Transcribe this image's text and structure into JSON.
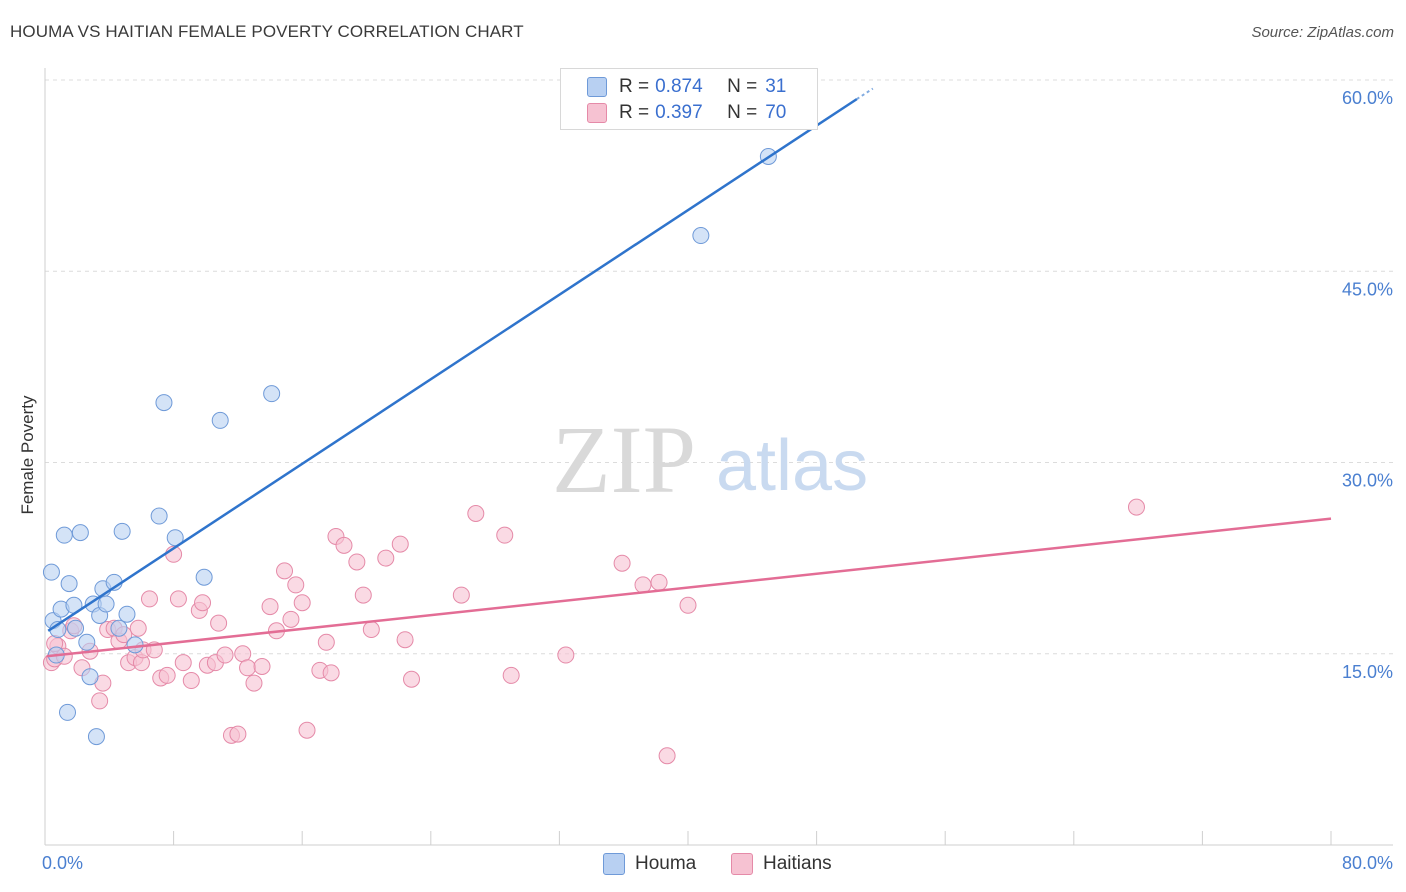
{
  "header": {
    "title": "HOUMA VS HAITIAN FEMALE POVERTY CORRELATION CHART",
    "source": "Source: ZipAtlas.com"
  },
  "watermark": {
    "zip": "ZIP",
    "atlas": "atlas"
  },
  "legend": {
    "houma": {
      "r_label": "R = ",
      "r_value": "0.874",
      "n_label": "N = ",
      "n_value": "31"
    },
    "haitians": {
      "r_label": "R = ",
      "r_value": "0.397",
      "n_label": "N = ",
      "n_value": "70"
    }
  },
  "colors": {
    "houma_fill": "#b8d0f2",
    "houma_stroke": "#6f9ad8",
    "houma_line": "#2f74cc",
    "haitians_fill": "#f6c2d2",
    "haitians_stroke": "#e58aa8",
    "haitians_line": "#e36d95",
    "tick_text": "#4a7fd0",
    "grid": "#dcdcdc"
  },
  "chart_data": {
    "type": "scatter",
    "title": "HOUMA VS HAITIAN FEMALE POVERTY CORRELATION CHART",
    "ylabel": "Female Poverty",
    "xlabel": "",
    "xlim": [
      0,
      80
    ],
    "ylim": [
      0,
      60
    ],
    "x_tick_labels": [
      "0.0%",
      "80.0%"
    ],
    "y_ticks": [
      15,
      30,
      45,
      60
    ],
    "y_tick_labels": [
      "15.0%",
      "30.0%",
      "45.0%",
      "60.0%"
    ],
    "grid": true,
    "legend_position": "top-center",
    "series": [
      {
        "name": "Houma",
        "r": 0.874,
        "n": 31,
        "trend": {
          "x": [
            0.2,
            50.5
          ],
          "y": [
            16.8,
            58.5
          ]
        },
        "points": [
          [
            0.4,
            21.4
          ],
          [
            0.5,
            17.6
          ],
          [
            0.7,
            14.9
          ],
          [
            0.8,
            16.9
          ],
          [
            1.0,
            18.5
          ],
          [
            1.2,
            24.3
          ],
          [
            1.4,
            10.4
          ],
          [
            1.5,
            20.5
          ],
          [
            1.8,
            18.8
          ],
          [
            1.9,
            17.0
          ],
          [
            2.2,
            24.5
          ],
          [
            2.6,
            15.9
          ],
          [
            2.8,
            13.2
          ],
          [
            3.0,
            18.9
          ],
          [
            3.2,
            8.5
          ],
          [
            3.4,
            18.0
          ],
          [
            3.6,
            20.1
          ],
          [
            3.8,
            18.9
          ],
          [
            4.3,
            20.6
          ],
          [
            4.6,
            17.0
          ],
          [
            4.8,
            24.6
          ],
          [
            5.1,
            18.1
          ],
          [
            5.6,
            15.7
          ],
          [
            7.1,
            25.8
          ],
          [
            7.4,
            34.7
          ],
          [
            8.1,
            24.1
          ],
          [
            9.9,
            21.0
          ],
          [
            10.9,
            33.3
          ],
          [
            14.1,
            35.4
          ],
          [
            40.8,
            47.8
          ],
          [
            45.0,
            54.0
          ]
        ]
      },
      {
        "name": "Haitians",
        "r": 0.397,
        "n": 70,
        "trend": {
          "x": [
            0.1,
            80.0
          ],
          "y": [
            14.8,
            25.6
          ]
        },
        "points": [
          [
            0.4,
            14.3
          ],
          [
            0.6,
            14.6
          ],
          [
            0.8,
            15.6
          ],
          [
            1.2,
            14.8
          ],
          [
            1.6,
            16.8
          ],
          [
            1.8,
            17.2
          ],
          [
            2.3,
            13.9
          ],
          [
            2.8,
            15.2
          ],
          [
            3.4,
            11.3
          ],
          [
            3.6,
            12.7
          ],
          [
            3.9,
            16.9
          ],
          [
            4.3,
            17.0
          ],
          [
            4.6,
            16.0
          ],
          [
            4.9,
            16.5
          ],
          [
            5.2,
            14.3
          ],
          [
            5.6,
            14.7
          ],
          [
            6.0,
            14.3
          ],
          [
            6.1,
            15.3
          ],
          [
            6.5,
            19.3
          ],
          [
            6.8,
            15.3
          ],
          [
            7.2,
            13.1
          ],
          [
            7.6,
            13.3
          ],
          [
            8.0,
            22.8
          ],
          [
            8.3,
            19.3
          ],
          [
            8.6,
            14.3
          ],
          [
            9.1,
            12.9
          ],
          [
            9.6,
            18.4
          ],
          [
            9.8,
            19.0
          ],
          [
            10.1,
            14.1
          ],
          [
            10.6,
            14.3
          ],
          [
            10.8,
            17.4
          ],
          [
            11.2,
            14.9
          ],
          [
            11.6,
            8.6
          ],
          [
            12.0,
            8.7
          ],
          [
            12.3,
            15.0
          ],
          [
            12.6,
            13.9
          ],
          [
            13.0,
            12.7
          ],
          [
            13.5,
            14.0
          ],
          [
            14.0,
            18.7
          ],
          [
            14.4,
            16.8
          ],
          [
            14.9,
            21.5
          ],
          [
            15.3,
            17.7
          ],
          [
            15.6,
            20.4
          ],
          [
            16.0,
            19.0
          ],
          [
            16.3,
            9.0
          ],
          [
            17.1,
            13.7
          ],
          [
            17.5,
            15.9
          ],
          [
            17.8,
            13.5
          ],
          [
            18.1,
            24.2
          ],
          [
            18.6,
            23.5
          ],
          [
            19.4,
            22.2
          ],
          [
            19.8,
            19.6
          ],
          [
            20.3,
            16.9
          ],
          [
            21.2,
            22.5
          ],
          [
            22.1,
            23.6
          ],
          [
            22.4,
            16.1
          ],
          [
            22.8,
            13.0
          ],
          [
            25.9,
            19.6
          ],
          [
            26.8,
            26.0
          ],
          [
            28.6,
            24.3
          ],
          [
            29.0,
            13.3
          ],
          [
            32.4,
            14.9
          ],
          [
            35.9,
            22.1
          ],
          [
            37.2,
            20.4
          ],
          [
            38.2,
            20.6
          ],
          [
            38.7,
            7.0
          ],
          [
            40.0,
            18.8
          ],
          [
            67.9,
            26.5
          ],
          [
            0.6,
            15.8
          ],
          [
            5.8,
            17.0
          ]
        ]
      }
    ]
  }
}
